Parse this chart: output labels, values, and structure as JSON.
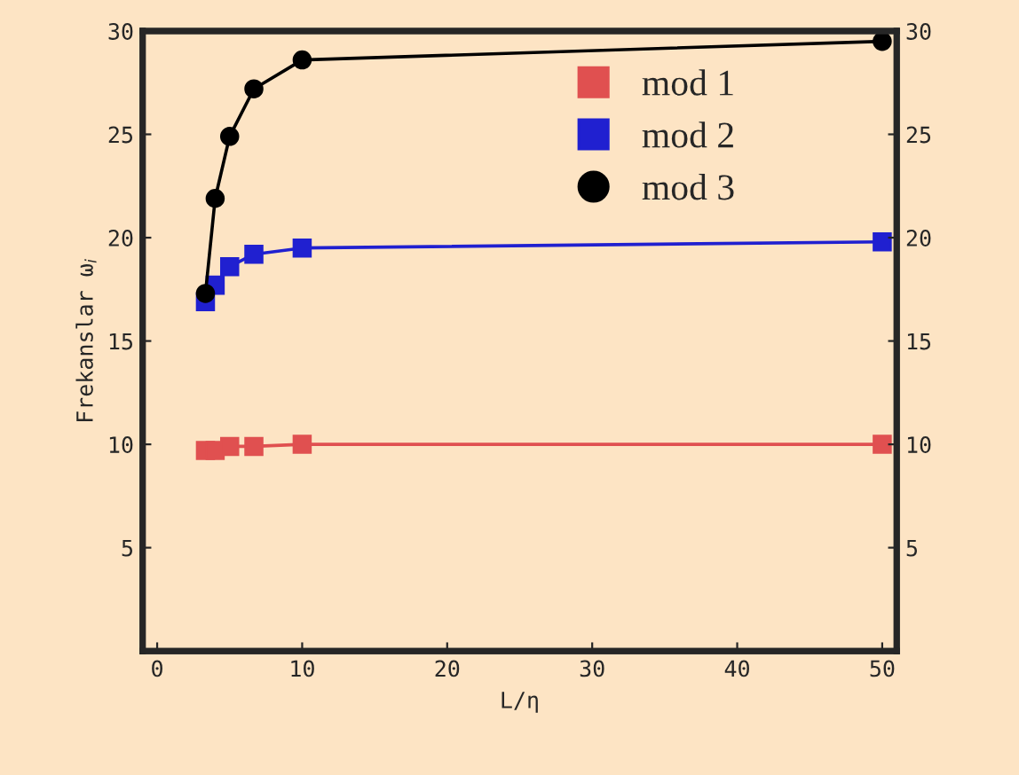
{
  "chart_data": {
    "type": "line",
    "xlabel": "L/η",
    "ylabel": "Frekanslar ω$_{i}$",
    "x": [
      3.33,
      4,
      5,
      6.67,
      10,
      50
    ],
    "series": [
      {
        "name": "mod 1",
        "color": "#e05050",
        "marker": "square",
        "values": [
          9.7,
          9.7,
          9.9,
          9.9,
          10.0,
          10.0
        ]
      },
      {
        "name": "mod 2",
        "color": "#2020d0",
        "marker": "square",
        "values": [
          16.9,
          17.7,
          18.6,
          19.2,
          19.5,
          19.8
        ]
      },
      {
        "name": "mod 3",
        "color": "#000000",
        "marker": "circle",
        "values": [
          17.3,
          21.9,
          24.9,
          27.2,
          28.6,
          29.5
        ]
      }
    ],
    "xlim": [
      -1,
      51
    ],
    "xticks": [
      0,
      10,
      20,
      30,
      40,
      50
    ],
    "ylim": [
      0,
      30
    ],
    "yticks": [
      5,
      10,
      15,
      20,
      25,
      30
    ],
    "y2lim": [
      0,
      30
    ],
    "y2ticks": [
      5,
      10,
      15,
      20,
      25,
      30
    ],
    "legend": "top right",
    "grid": false
  }
}
